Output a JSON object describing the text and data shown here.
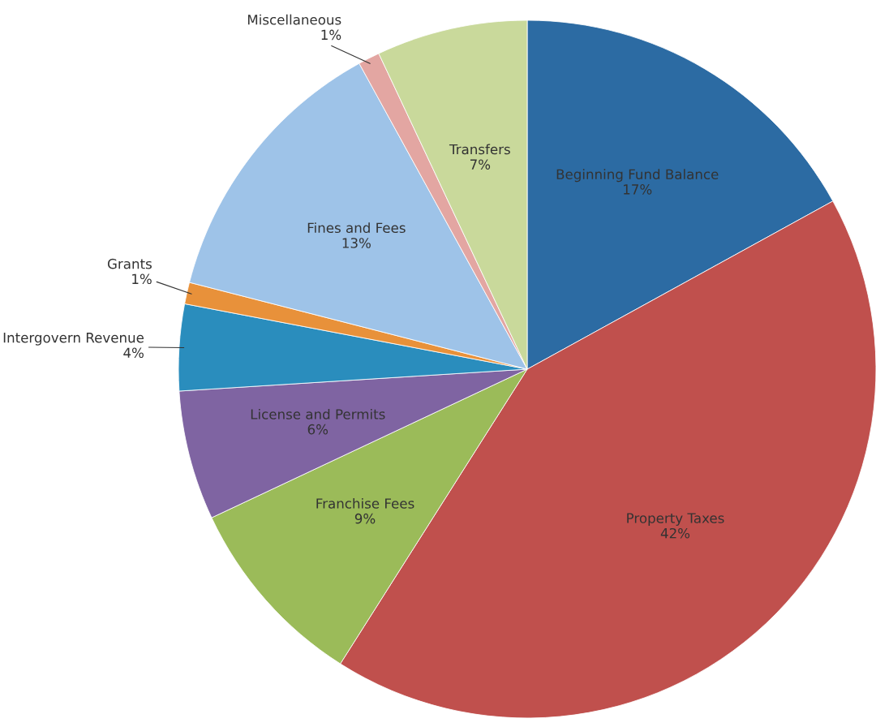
{
  "chart_data": {
    "type": "pie",
    "categories": [
      "Beginning Fund Balance",
      "Property Taxes",
      "Franchise Fees",
      "License and Permits",
      "Intergovern Revenue",
      "Grants",
      "Fines and Fees",
      "Miscellaneous",
      "Transfers"
    ],
    "values": [
      17,
      42,
      9,
      6,
      4,
      1,
      13,
      1,
      7
    ],
    "value_labels": [
      "17%",
      "42%",
      "9%",
      "6%",
      "4%",
      "1%",
      "13%",
      "1%",
      "7%"
    ],
    "colors": [
      "#2c6ba3",
      "#c0504d",
      "#9bbb59",
      "#7f64a2",
      "#2a8dbd",
      "#e8913a",
      "#9ec3e8",
      "#e3a6a2",
      "#c9d99b"
    ],
    "legend": false
  }
}
